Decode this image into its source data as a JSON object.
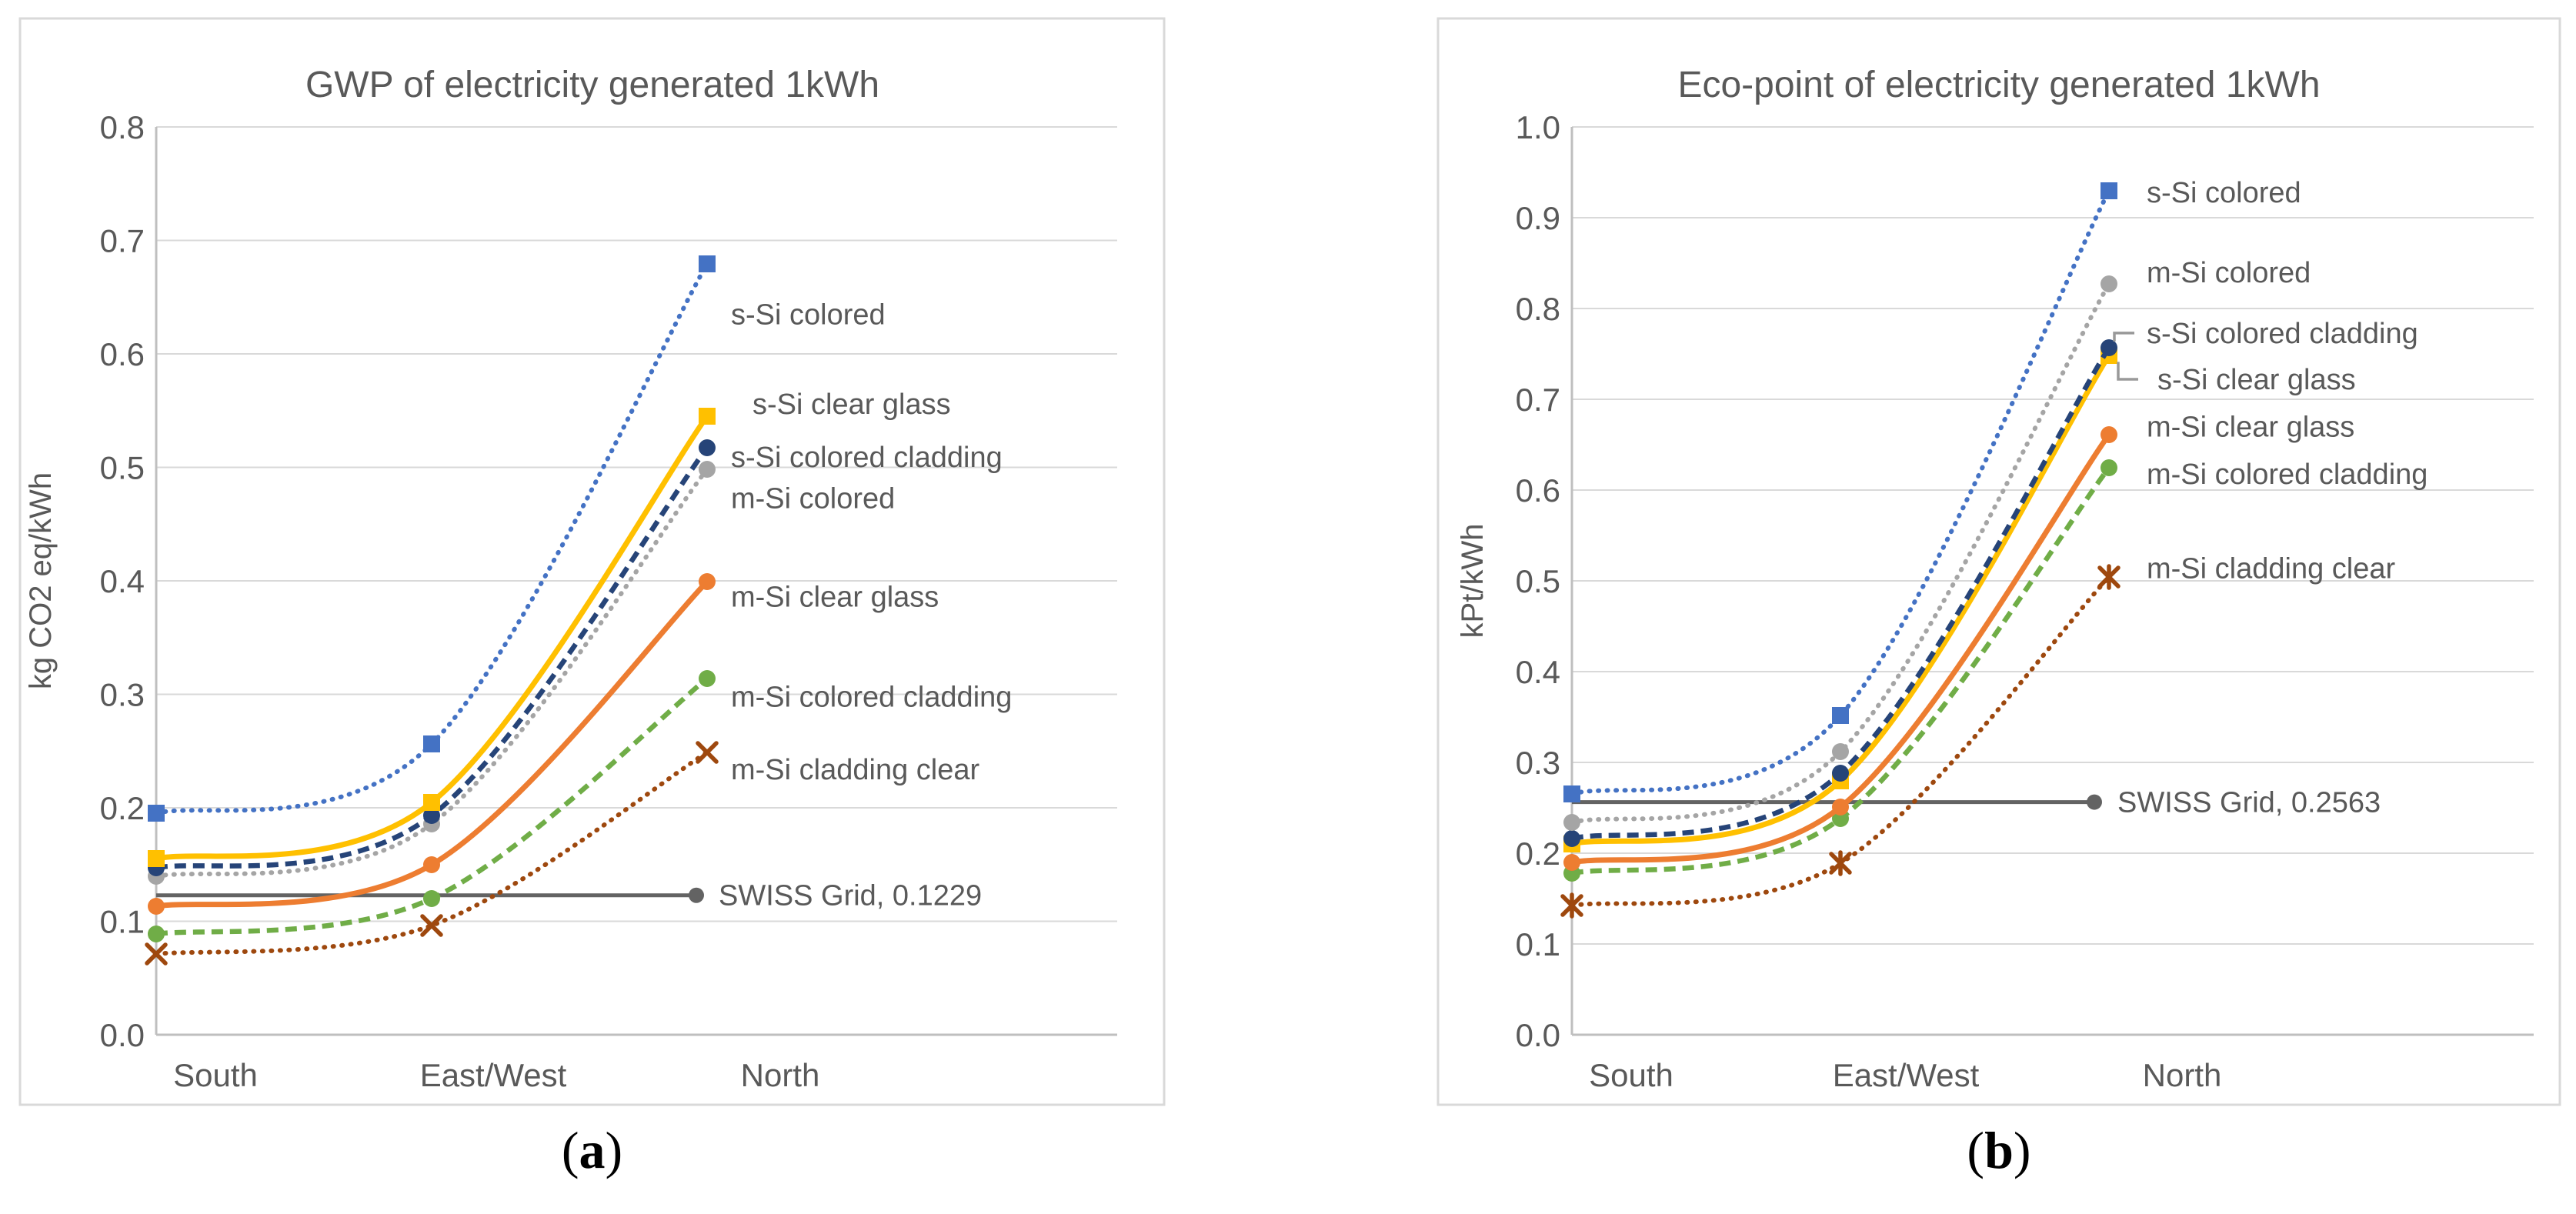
{
  "figure": {
    "captions": {
      "a": {
        "open": "(",
        "letter": "a",
        "close": ")"
      },
      "b": {
        "open": "(",
        "letter": "b",
        "close": ")"
      }
    }
  },
  "colors": {
    "blue": "#4472C4",
    "gold": "#FFC000",
    "navy": "#264478",
    "gray": "#A5A5A5",
    "orange": "#ED7D31",
    "green": "#70AD47",
    "brown": "#9E480E",
    "reference_gray": "#636363",
    "grid": "#D9D9D9",
    "axis": "#BFBFBF",
    "text": "#595959"
  },
  "chart_data": [
    {
      "panel": "a",
      "type": "line",
      "title": "GWP of electricity generated 1kWh",
      "ylabel": "kg CO2 eq/kWh",
      "xlabel": "",
      "ylim": [
        0.0,
        0.8
      ],
      "ytick_step": 0.1,
      "ytick_labels": [
        "0.0",
        "0.1",
        "0.2",
        "0.3",
        "0.4",
        "0.5",
        "0.6",
        "0.7",
        "0.8"
      ],
      "categories": [
        "South",
        "East/West",
        "North"
      ],
      "grid": true,
      "legend_position": "labels at right ends of lines",
      "series": [
        {
          "name": "s-Si colored",
          "values": [
            0.195,
            0.256,
            0.679
          ],
          "color": "#4472C4",
          "line": "dotted",
          "marker": "square",
          "label_y": 0.635
        },
        {
          "name": "s-Si clear glass",
          "values": [
            0.155,
            0.205,
            0.545
          ],
          "color": "#FFC000",
          "line": "solid",
          "marker": "square",
          "label_y": 0.556,
          "label_dx": 28
        },
        {
          "name": "s-Si colored cladding",
          "values": [
            0.147,
            0.193,
            0.517
          ],
          "color": "#264478",
          "line": "dashed",
          "marker": "circle",
          "label_y": 0.509
        },
        {
          "name": "m-Si colored",
          "values": [
            0.14,
            0.186,
            0.498
          ],
          "color": "#A5A5A5",
          "line": "dotted",
          "marker": "circle",
          "label_y": 0.473
        },
        {
          "name": "m-Si clear glass",
          "values": [
            0.113,
            0.15,
            0.399
          ],
          "color": "#ED7D31",
          "line": "solid",
          "marker": "circle",
          "label_y": 0.386
        },
        {
          "name": "m-Si colored cladding",
          "values": [
            0.089,
            0.12,
            0.314
          ],
          "color": "#70AD47",
          "line": "dashed",
          "marker": "circle",
          "label_y": 0.298
        },
        {
          "name": "m-Si cladding clear",
          "values": [
            0.071,
            0.096,
            0.249
          ],
          "color": "#9E480E",
          "line": "dotted",
          "marker": "x",
          "label_y": 0.234
        }
      ],
      "reference": {
        "label": "SWISS Grid, 0.1229",
        "value": 0.1229,
        "color": "#636363"
      }
    },
    {
      "panel": "b",
      "type": "line",
      "title": "Eco-point of electricity generated 1kWh",
      "ylabel": "kPt/kWh",
      "xlabel": "",
      "ylim": [
        0.0,
        1.0
      ],
      "ytick_step": 0.1,
      "ytick_labels": [
        "0.0",
        "0.1",
        "0.2",
        "0.3",
        "0.4",
        "0.5",
        "0.6",
        "0.7",
        "0.8",
        "0.9",
        "1.0"
      ],
      "categories": [
        "South",
        "East/West",
        "North"
      ],
      "grid": true,
      "legend_position": "labels at right ends of lines",
      "series": [
        {
          "name": "s-Si colored",
          "values": [
            0.265,
            0.352,
            0.93
          ],
          "color": "#4472C4",
          "line": "dotted",
          "marker": "square",
          "label_y": 0.928
        },
        {
          "name": "m-Si colored",
          "values": [
            0.234,
            0.312,
            0.827
          ],
          "color": "#A5A5A5",
          "line": "dotted",
          "marker": "circle",
          "label_y": 0.84
        },
        {
          "name": "s-Si colored cladding",
          "values": [
            0.216,
            0.288,
            0.757
          ],
          "color": "#264478",
          "line": "dashed",
          "marker": "circle",
          "label_y": 0.773,
          "leader": "up"
        },
        {
          "name": "s-Si clear glass",
          "values": [
            0.21,
            0.28,
            0.748
          ],
          "color": "#FFC000",
          "line": "solid",
          "marker": "square",
          "label_y": 0.722,
          "label_dx": 14,
          "leader": "down"
        },
        {
          "name": "m-Si clear glass",
          "values": [
            0.19,
            0.251,
            0.661
          ],
          "color": "#ED7D31",
          "line": "solid",
          "marker": "circle",
          "label_y": 0.67
        },
        {
          "name": "m-Si colored cladding",
          "values": [
            0.178,
            0.238,
            0.625
          ],
          "color": "#70AD47",
          "line": "dashed",
          "marker": "circle",
          "label_y": 0.618
        },
        {
          "name": "m-Si cladding clear",
          "values": [
            0.142,
            0.189,
            0.504
          ],
          "color": "#9E480E",
          "line": "dotted",
          "marker": "star",
          "label_y": 0.514
        }
      ],
      "reference": {
        "label": "SWISS Grid, 0.2563",
        "value": 0.2563,
        "color": "#636363"
      }
    }
  ]
}
